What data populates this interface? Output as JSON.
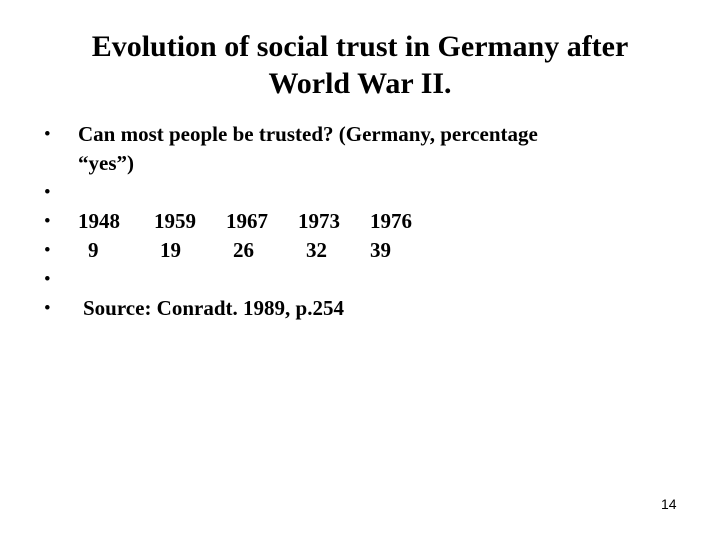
{
  "slide": {
    "title_line1": "Evolution of social trust in Germany after",
    "title_line2": "World War II.",
    "question_line1": "Can most people be trusted? (Germany, percentage",
    "question_line2": "“yes”)",
    "years": [
      "1948",
      "1959",
      "1967",
      "1973",
      "1976"
    ],
    "values": [
      "9",
      "19",
      "26",
      "32",
      "39"
    ],
    "source": "Source: Conradt. 1989, p.254",
    "bullet_glyph": "•",
    "page_number": "14"
  }
}
